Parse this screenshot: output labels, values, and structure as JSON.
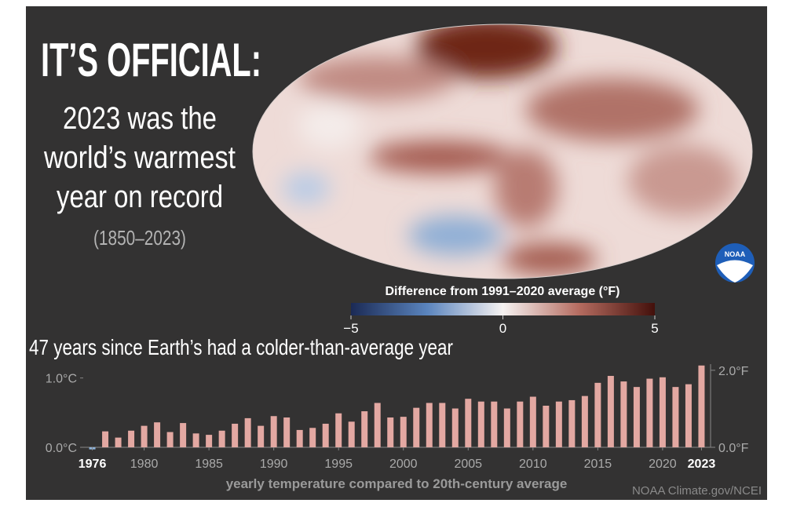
{
  "header": {
    "title": "IT’S OFFICIAL:",
    "lines": [
      "2023 was the",
      "world’s warmest",
      "year on record"
    ],
    "period": "(1850–2023)"
  },
  "map_legend": {
    "label": "Difference from 1991–2020 average (°F)",
    "lim": [
      -5,
      5
    ],
    "ticks": [
      {
        "value": -5,
        "label": "−5"
      },
      0,
      5
    ]
  },
  "logo": "NOAA",
  "credit": "NOAA Climate.gov/NCEI",
  "chart_data": {
    "type": "bar",
    "title": "47 years since Earth’s had a colder-than-average year",
    "x_label": "yearly temperature compared to 20th-century average",
    "x": [
      1976,
      1977,
      1978,
      1979,
      1980,
      1981,
      1982,
      1983,
      1984,
      1985,
      1986,
      1987,
      1988,
      1989,
      1990,
      1991,
      1992,
      1993,
      1994,
      1995,
      1996,
      1997,
      1998,
      1999,
      2000,
      2001,
      2002,
      2003,
      2004,
      2005,
      2006,
      2007,
      2008,
      2009,
      2010,
      2011,
      2012,
      2013,
      2014,
      2015,
      2016,
      2017,
      2018,
      2019,
      2020,
      2021,
      2022,
      2023
    ],
    "values": [
      -0.03,
      0.23,
      0.14,
      0.24,
      0.31,
      0.36,
      0.22,
      0.35,
      0.2,
      0.18,
      0.24,
      0.34,
      0.42,
      0.31,
      0.45,
      0.43,
      0.25,
      0.28,
      0.34,
      0.49,
      0.37,
      0.52,
      0.64,
      0.43,
      0.44,
      0.57,
      0.64,
      0.64,
      0.56,
      0.7,
      0.66,
      0.66,
      0.56,
      0.66,
      0.73,
      0.6,
      0.66,
      0.68,
      0.74,
      0.93,
      1.03,
      0.95,
      0.87,
      0.99,
      1.01,
      0.87,
      0.91,
      1.18
    ],
    "color": "#e3a8a2",
    "negative_color": "#8fb4dc",
    "xlim": [
      1975.3,
      2023.7
    ],
    "xticks": [
      1976,
      1980,
      1985,
      1990,
      1995,
      2000,
      2005,
      2010,
      2015,
      2020,
      2023
    ],
    "ylim": [
      0,
      1.2
    ],
    "yticks": [
      {
        "value": 0,
        "label": "0.0°C"
      },
      {
        "value": 1,
        "label": "1.0°C"
      }
    ],
    "y2lim": [
      0,
      2.16
    ],
    "y2ticks": [
      {
        "value": 0,
        "label": "0.0°F"
      },
      {
        "value": 2,
        "label": "2.0°F"
      }
    ]
  }
}
